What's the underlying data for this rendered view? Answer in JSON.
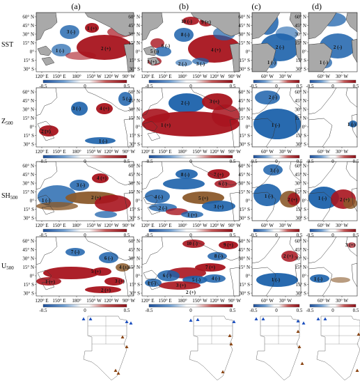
{
  "columns": [
    "(a)",
    "(b)",
    "(c)",
    "(d)"
  ],
  "rows": [
    {
      "prefix": "SST",
      "sub": ""
    },
    {
      "prefix": "Z",
      "sub": "500"
    },
    {
      "prefix": "SH",
      "sub": "500"
    },
    {
      "prefix": "U",
      "sub": "500"
    }
  ],
  "lat_ticks": [
    "60° N",
    "45° N",
    "30° N",
    "15° N",
    "0°",
    "15° S",
    "30° S"
  ],
  "lon_ticks_pacific": [
    "120° E",
    "150° E",
    "180°",
    "150° W",
    "120° W",
    "90° W"
  ],
  "lon_ticks_atlantic": [
    "60° W",
    "30° W"
  ],
  "colorbar": {
    "ticks": [
      "-0.5",
      "0",
      "0.5"
    ],
    "min": -0.5,
    "max": 0.5
  },
  "palette": {
    "ocean": "#ffffff",
    "land": "#a9a9a9",
    "pos": "#a8141e",
    "neg": "#1c62ab",
    "brown": "#8b5a2b"
  },
  "mode_labels": {
    "r0c0": [
      "1 (+)",
      "3 (-)",
      "1 (-)",
      "2 (+)"
    ],
    "r0c1": [
      "10 (-)",
      "9 (+)",
      "8 (-)",
      "6 (-)",
      "5 (-)",
      "4 (+)",
      "1 (+)",
      "2 (-)",
      "3 (-)"
    ],
    "r0c2": [
      "2 (-)",
      "1 (-)"
    ],
    "r0c3": [
      "2 (-)",
      "1 (-)"
    ],
    "r1c0": [
      "3 (-)",
      "4 (+)",
      "5 (-)",
      "2 (+)",
      "1 (-)"
    ],
    "r1c1": [
      "2 (-)",
      "3 (+)",
      "1 (+)"
    ],
    "r1c2": [
      "2 (-)",
      "1 (-)"
    ],
    "r1c3": [
      "1 (-)"
    ],
    "r2c0": [
      "4 (+)",
      "3 (-)",
      "2 (+)",
      "1 (-)"
    ],
    "r2c1": [
      "8 (-)",
      "7 (+)",
      "6 (-)",
      "5 (+)",
      "4 (-)",
      "3 (+)",
      "2 (-)",
      "1 (+)"
    ],
    "r2c2": [
      "3 (-)",
      "1 (-)",
      "2 (+)"
    ],
    "r2c3": [
      "1 (-)",
      "2 (+)"
    ],
    "r3c0": [
      "7 (-)",
      "6 (-)",
      "5 (+)",
      "4 (+)",
      "3 (+)",
      "2 (+)",
      "1 (+)"
    ],
    "r3c1": [
      "10 (-)",
      "9 (+)",
      "8 (-)",
      "7 (+)",
      "6 (-)",
      "5 (-)",
      "4 (-)",
      "3 (+)",
      "2 (+)",
      "1 (-)"
    ],
    "r3c2": [
      "2 (+)",
      "1 (-)"
    ],
    "r3c3": [
      "3 (+)",
      "1 (-)"
    ]
  }
}
